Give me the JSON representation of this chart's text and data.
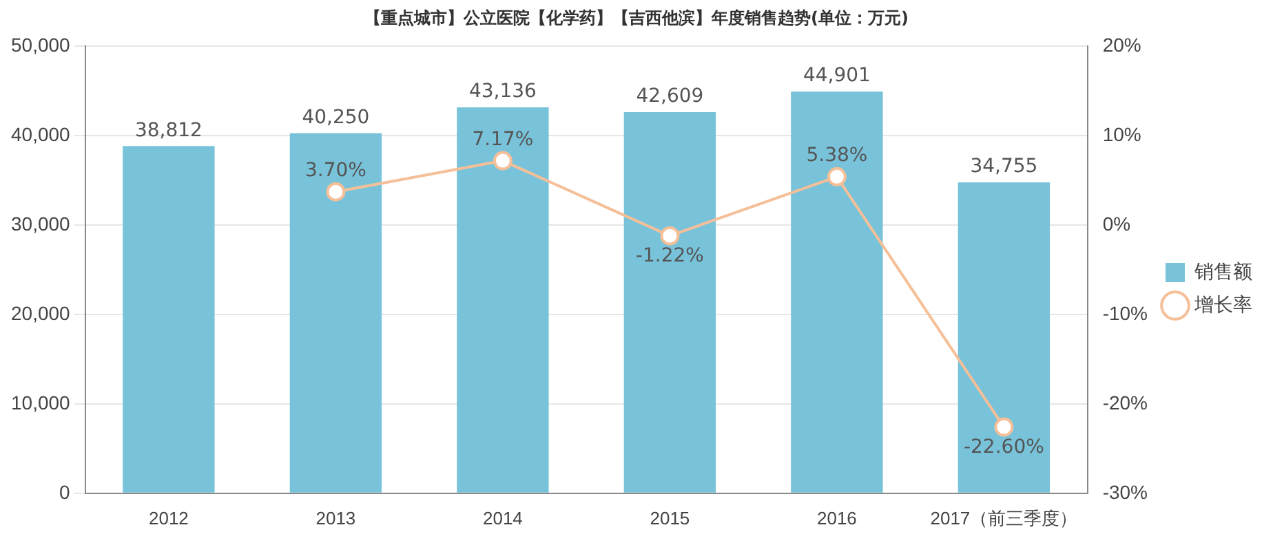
{
  "chart_data": {
    "type": "bar",
    "title": "【重点城市】公立医院【化学药】【吉西他滨】年度销售趋势(单位：万元)",
    "categories": [
      "2012",
      "2013",
      "2014",
      "2015",
      "2016",
      "2017（前三季度）"
    ],
    "series": [
      {
        "name": "销售额",
        "color": "#78c3da",
        "values": [
          38812,
          40250,
          43136,
          42609,
          44901,
          34755
        ],
        "value_labels": [
          "38,812",
          "40,250",
          "43,136",
          "42,609",
          "44,901",
          "34,755"
        ]
      },
      {
        "name": "增长率",
        "type": "line",
        "axis": "y2",
        "color": "#f5bf98",
        "values": [
          null,
          3.7,
          7.17,
          -1.22,
          5.38,
          -22.6
        ],
        "value_labels": [
          null,
          "3.70%",
          "7.17%",
          "-1.22%",
          "5.38%",
          "-22.60%"
        ]
      }
    ],
    "ylim": [
      0,
      50000
    ],
    "yticks": [
      {
        "value": 0,
        "label": "0"
      },
      {
        "value": 10000,
        "label": "10,000"
      },
      {
        "value": 20000,
        "label": "20,000"
      },
      {
        "value": 30000,
        "label": "30,000"
      },
      {
        "value": 40000,
        "label": "40,000"
      },
      {
        "value": 50000,
        "label": "50,000"
      }
    ],
    "y2lim": [
      -30,
      20
    ],
    "y2ticks": [
      {
        "value": -30,
        "label": "-30%"
      },
      {
        "value": -20,
        "label": "-20%"
      },
      {
        "value": -10,
        "label": "-10%"
      },
      {
        "value": 0,
        "label": "0%"
      },
      {
        "value": 10,
        "label": "10%"
      },
      {
        "value": 20,
        "label": "20%"
      }
    ],
    "grid": "y",
    "legend": "right",
    "marker": "circle",
    "line_style": "solid"
  }
}
